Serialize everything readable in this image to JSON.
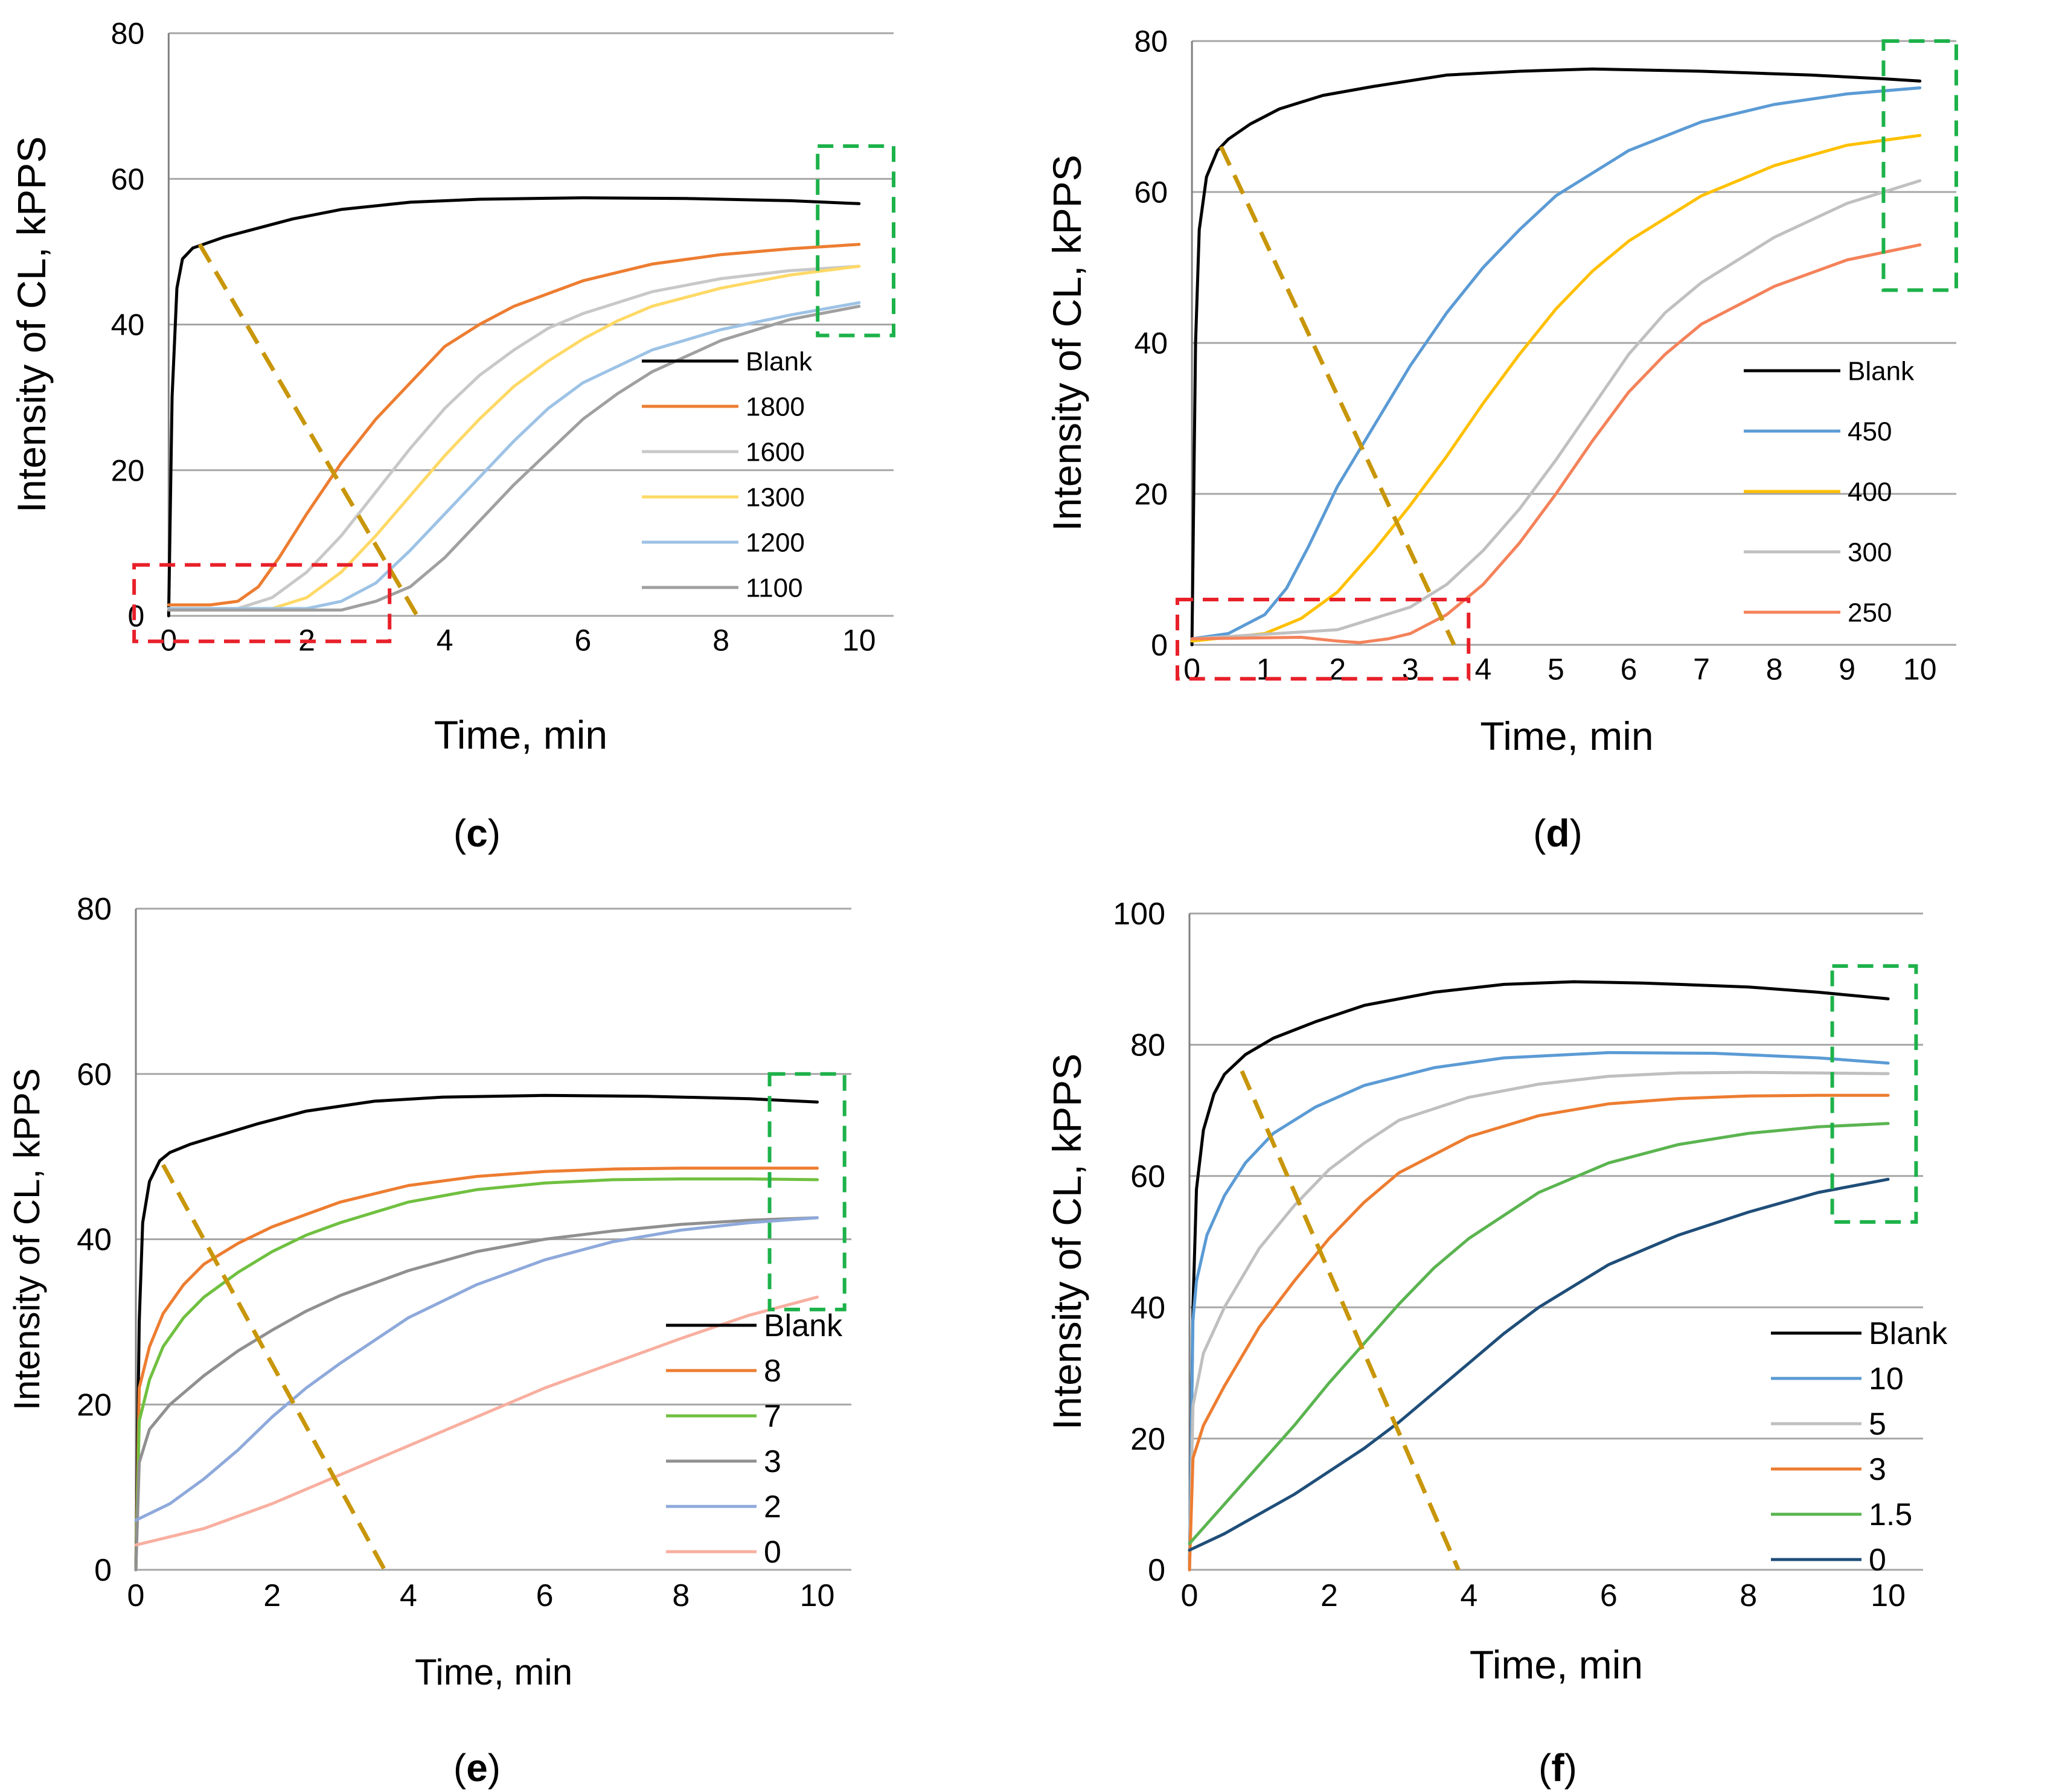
{
  "figure": {
    "panels": [
      "c",
      "d",
      "e",
      "f"
    ]
  },
  "chart_data": [
    {
      "id": "c",
      "caption": "(c)",
      "type": "line",
      "xlabel": "Time, min",
      "ylabel": "Intensity of CL, kPPS",
      "xlim": [
        -0.3,
        10.5
      ],
      "ylim": [
        0,
        80
      ],
      "xticks": [
        0,
        2,
        4,
        6,
        8,
        10
      ],
      "yticks": [
        0,
        20,
        40,
        60,
        80
      ],
      "grid": true,
      "legend": "right",
      "series": [
        {
          "name": "Blank",
          "color": "#000000",
          "x": [
            0,
            0.05,
            0.12,
            0.2,
            0.35,
            0.5,
            0.8,
            1.2,
            1.8,
            2.5,
            3.5,
            4.5,
            6,
            7.5,
            9,
            10
          ],
          "y": [
            0,
            30,
            45,
            49,
            50.5,
            51,
            52,
            53,
            54.5,
            55.8,
            56.8,
            57.2,
            57.4,
            57.3,
            57,
            56.6
          ]
        },
        {
          "name": "1800",
          "color": "#ED7D31",
          "x": [
            0,
            0.6,
            1,
            1.3,
            1.6,
            2,
            2.5,
            3,
            3.5,
            4,
            4.5,
            5,
            6,
            7,
            8,
            9,
            10
          ],
          "y": [
            1.5,
            1.5,
            2,
            4,
            8,
            14,
            21,
            27,
            32,
            37,
            40,
            42.5,
            46,
            48.3,
            49.6,
            50.4,
            51
          ]
        },
        {
          "name": "1600",
          "color": "#C8C8C8",
          "x": [
            0,
            1,
            1.5,
            2,
            2.5,
            3,
            3.5,
            4,
            4.5,
            5,
            5.5,
            6,
            7,
            8,
            9,
            10
          ],
          "y": [
            1,
            1,
            2.5,
            6,
            11,
            17,
            23,
            28.5,
            33,
            36.5,
            39.5,
            41.5,
            44.5,
            46.3,
            47.4,
            48
          ]
        },
        {
          "name": "1300",
          "color": "#FFD966",
          "x": [
            0,
            1.5,
            2,
            2.5,
            3,
            3.5,
            4,
            4.5,
            5,
            5.5,
            6,
            6.5,
            7,
            8,
            9,
            10
          ],
          "y": [
            1,
            1,
            2.5,
            6,
            11,
            16.5,
            22,
            27,
            31.5,
            35,
            38,
            40.5,
            42.5,
            45,
            46.8,
            48
          ]
        },
        {
          "name": "1200",
          "color": "#9DC3E6",
          "x": [
            0,
            2,
            2.5,
            3,
            3.5,
            4,
            4.5,
            5,
            5.5,
            6,
            7,
            8,
            9,
            10
          ],
          "y": [
            1,
            1,
            2,
            4.5,
            9,
            14,
            19,
            24,
            28.5,
            32,
            36.5,
            39.3,
            41.3,
            43
          ]
        },
        {
          "name": "1100",
          "color": "#A0A0A0",
          "x": [
            0,
            2.5,
            3,
            3.5,
            4,
            4.5,
            5,
            5.5,
            6,
            6.5,
            7,
            8,
            9,
            10
          ],
          "y": [
            0.8,
            0.8,
            2,
            4,
            8,
            13,
            18,
            22.5,
            27,
            30.5,
            33.5,
            37.8,
            40.7,
            42.5
          ]
        }
      ],
      "annotations": {
        "dashed_diagonal": [
          [
            0.45,
            51
          ],
          [
            3.6,
            0
          ]
        ],
        "red_box": [
          [
            -0.5,
            -3.5
          ],
          [
            3.2,
            7
          ]
        ],
        "green_box": [
          [
            9.4,
            38.5
          ],
          [
            10.5,
            64.5
          ]
        ]
      }
    },
    {
      "id": "d",
      "caption": "(d)",
      "type": "line",
      "xlabel": "Time, min",
      "ylabel": "Intensity of CL, kPPS",
      "xlim": [
        -0.2,
        10.5
      ],
      "ylim": [
        0,
        80
      ],
      "xticks": [
        0,
        1,
        2,
        3,
        4,
        5,
        6,
        7,
        8,
        9,
        10
      ],
      "yticks": [
        0,
        20,
        40,
        60,
        80
      ],
      "grid": true,
      "legend": "right",
      "series": [
        {
          "name": "Blank",
          "color": "#000000",
          "x": [
            0,
            0.05,
            0.1,
            0.2,
            0.35,
            0.5,
            0.8,
            1.2,
            1.8,
            2.5,
            3.5,
            4.5,
            5.5,
            7,
            8.5,
            9.5,
            10
          ],
          "y": [
            0,
            40,
            55,
            62,
            65.5,
            67,
            69,
            71,
            72.8,
            74,
            75.5,
            76,
            76.3,
            76,
            75.5,
            75,
            74.7
          ]
        },
        {
          "name": "450",
          "color": "#5B9BD5",
          "x": [
            0,
            0.5,
            1,
            1.3,
            1.6,
            2,
            2.5,
            3,
            3.5,
            4,
            4.5,
            5,
            6,
            7,
            8,
            9,
            10
          ],
          "y": [
            0.8,
            1.5,
            4,
            7.5,
            13,
            21,
            29,
            37,
            44,
            50,
            55,
            59.5,
            65.5,
            69.3,
            71.6,
            73,
            73.8
          ]
        },
        {
          "name": "400",
          "color": "#FFC000",
          "x": [
            0,
            1,
            1.5,
            2,
            2.5,
            3,
            3.5,
            4,
            4.5,
            5,
            5.5,
            6,
            7,
            8,
            9,
            10
          ],
          "y": [
            0.5,
            1.5,
            3.5,
            7,
            12.5,
            18.5,
            25,
            32,
            38.5,
            44.5,
            49.5,
            53.5,
            59.5,
            63.5,
            66.2,
            67.5
          ]
        },
        {
          "name": "300",
          "color": "#C0C0C0",
          "x": [
            0,
            2,
            2.5,
            3,
            3.5,
            4,
            4.5,
            5,
            5.5,
            6,
            6.5,
            7,
            8,
            9,
            10
          ],
          "y": [
            0.8,
            2,
            3.5,
            5,
            8,
            12.5,
            18,
            24.5,
            31.5,
            38.5,
            44,
            48,
            54,
            58.5,
            61.5
          ]
        },
        {
          "name": "250",
          "color": "#F4825A",
          "x": [
            0,
            1.5,
            2,
            2.3,
            2.7,
            3,
            3.5,
            4,
            4.5,
            5,
            5.5,
            6,
            6.5,
            7,
            8,
            9,
            10
          ],
          "y": [
            0.8,
            1,
            0.5,
            0.3,
            0.8,
            1.5,
            4,
            8,
            13.5,
            20,
            27,
            33.5,
            38.5,
            42.5,
            47.5,
            51,
            53
          ]
        }
      ],
      "annotations": {
        "dashed_diagonal": [
          [
            0.4,
            66
          ],
          [
            3.6,
            0
          ]
        ],
        "red_box": [
          [
            -0.2,
            -4.5
          ],
          [
            3.8,
            6
          ]
        ],
        "green_box": [
          [
            9.5,
            47
          ],
          [
            10.5,
            80
          ]
        ]
      }
    },
    {
      "id": "e",
      "caption": "(e)",
      "type": "line",
      "xlabel": "Time, min",
      "ylabel": "Intensity of CL, kPPS",
      "xlim": [
        0,
        10.5
      ],
      "ylim": [
        0,
        80
      ],
      "xticks": [
        0,
        2,
        4,
        6,
        8,
        10
      ],
      "yticks": [
        0,
        20,
        40,
        60,
        80
      ],
      "grid": true,
      "legend": "right",
      "series": [
        {
          "name": "Blank",
          "color": "#000000",
          "x": [
            0,
            0.05,
            0.1,
            0.2,
            0.35,
            0.5,
            0.8,
            1.2,
            1.8,
            2.5,
            3.5,
            4.5,
            6,
            7.5,
            9,
            10
          ],
          "y": [
            0,
            30,
            42,
            47,
            49.5,
            50.5,
            51.5,
            52.5,
            54,
            55.5,
            56.7,
            57.2,
            57.4,
            57.3,
            57,
            56.6
          ]
        },
        {
          "name": "8",
          "color": "#ED7D31",
          "x": [
            0,
            0.05,
            0.2,
            0.4,
            0.7,
            1,
            1.5,
            2,
            2.5,
            3,
            4,
            5,
            6,
            7,
            8,
            9,
            10
          ],
          "y": [
            0,
            22,
            27,
            31,
            34.5,
            37,
            39.5,
            41.5,
            43,
            44.5,
            46.5,
            47.6,
            48.2,
            48.5,
            48.6,
            48.6,
            48.6
          ]
        },
        {
          "name": "7",
          "color": "#70C040",
          "x": [
            0,
            0.05,
            0.2,
            0.4,
            0.7,
            1,
            1.5,
            2,
            2.5,
            3,
            4,
            5,
            6,
            7,
            8,
            9,
            10
          ],
          "y": [
            0,
            18,
            23,
            27,
            30.5,
            33,
            36,
            38.5,
            40.5,
            42,
            44.5,
            46,
            46.8,
            47.2,
            47.3,
            47.3,
            47.2
          ]
        },
        {
          "name": "3",
          "color": "#909090",
          "x": [
            0,
            0.05,
            0.2,
            0.5,
            1,
            1.5,
            2,
            2.5,
            3,
            4,
            5,
            6,
            7,
            8,
            9,
            10
          ],
          "y": [
            0,
            13,
            17,
            20,
            23.5,
            26.5,
            29,
            31.3,
            33.2,
            36.2,
            38.5,
            40,
            41,
            41.8,
            42.3,
            42.6
          ]
        },
        {
          "name": "2",
          "color": "#8EA9DB",
          "x": [
            0,
            0.5,
            1,
            1.5,
            2,
            2.5,
            3,
            4,
            5,
            6,
            7,
            8,
            9,
            10
          ],
          "y": [
            6,
            8,
            11,
            14.5,
            18.5,
            22,
            25,
            30.5,
            34.5,
            37.5,
            39.7,
            41.1,
            42,
            42.6
          ]
        },
        {
          "name": "0",
          "color": "#F8AFA0",
          "x": [
            0,
            0.5,
            1,
            2,
            3,
            4,
            5,
            6,
            7,
            8,
            9,
            10
          ],
          "y": [
            3,
            4,
            5,
            8,
            11.5,
            15,
            18.5,
            22,
            25,
            28,
            30.8,
            33
          ]
        }
      ],
      "annotations": {
        "dashed_diagonal": [
          [
            0.4,
            49
          ],
          [
            3.65,
            0
          ]
        ],
        "green_box": [
          [
            9.3,
            31.5
          ],
          [
            10.4,
            60
          ]
        ]
      }
    },
    {
      "id": "f",
      "caption": "(f)",
      "type": "line",
      "xlabel": "Time, min",
      "ylabel": "Intensity of CL, kPPS",
      "xlim": [
        0,
        10.5
      ],
      "ylim": [
        0,
        100
      ],
      "xticks": [
        0,
        2,
        4,
        6,
        8,
        10
      ],
      "yticks": [
        0,
        20,
        40,
        60,
        80,
        100
      ],
      "grid": true,
      "legend": "right",
      "series": [
        {
          "name": "Blank",
          "color": "#000000",
          "x": [
            0,
            0.05,
            0.1,
            0.2,
            0.35,
            0.5,
            0.8,
            1.2,
            1.8,
            2.5,
            3.5,
            4.5,
            5.5,
            6.5,
            8,
            9,
            10
          ],
          "y": [
            0,
            40,
            58,
            67,
            72.5,
            75.5,
            78.5,
            81,
            83.5,
            86,
            88,
            89.2,
            89.6,
            89.4,
            88.8,
            88,
            87
          ]
        },
        {
          "name": "10",
          "color": "#5B9BD5",
          "x": [
            0,
            0.05,
            0.1,
            0.25,
            0.5,
            0.8,
            1.2,
            1.8,
            2.5,
            3.5,
            4.5,
            6,
            7.5,
            9,
            10
          ],
          "y": [
            0,
            38,
            44,
            51,
            57,
            62,
            66.5,
            70.5,
            73.8,
            76.5,
            78,
            78.8,
            78.7,
            78,
            77.2
          ]
        },
        {
          "name": "5",
          "color": "#BFBFBF",
          "x": [
            0,
            0.05,
            0.2,
            0.5,
            1,
            1.5,
            2,
            2.5,
            3,
            4,
            5,
            6,
            7,
            8,
            9,
            10
          ],
          "y": [
            0,
            25,
            33,
            40,
            49,
            55.5,
            61,
            65,
            68.5,
            72,
            74,
            75.2,
            75.7,
            75.8,
            75.7,
            75.6
          ]
        },
        {
          "name": "3",
          "color": "#ED7D31",
          "x": [
            0,
            0.05,
            0.2,
            0.5,
            1,
            1.5,
            2,
            2.5,
            3,
            4,
            5,
            6,
            7,
            8,
            9,
            10
          ],
          "y": [
            0,
            17,
            22,
            28,
            37,
            44,
            50.5,
            56,
            60.5,
            66,
            69.2,
            71,
            71.8,
            72.2,
            72.3,
            72.3
          ]
        },
        {
          "name": "1.5",
          "color": "#5BB450",
          "x": [
            0,
            0.5,
            1,
            1.5,
            2,
            2.5,
            3,
            3.5,
            4,
            5,
            6,
            7,
            8,
            9,
            10
          ],
          "y": [
            4,
            10,
            16,
            22,
            28.5,
            34.5,
            40.5,
            46,
            50.5,
            57.5,
            62,
            64.8,
            66.5,
            67.5,
            68
          ]
        },
        {
          "name": "0",
          "color": "#1F4E79",
          "x": [
            0,
            0.5,
            1,
            1.5,
            2,
            2.5,
            3,
            3.5,
            4,
            4.5,
            5,
            6,
            7,
            8,
            9,
            10
          ],
          "y": [
            3,
            5.5,
            8.5,
            11.5,
            15,
            18.5,
            22.5,
            27,
            31.5,
            36,
            40,
            46.5,
            51,
            54.5,
            57.5,
            59.5
          ]
        }
      ],
      "annotations": {
        "dashed_diagonal": [
          [
            0.75,
            76
          ],
          [
            3.85,
            0
          ]
        ],
        "green_box": [
          [
            9.2,
            53
          ],
          [
            10.4,
            92
          ]
        ]
      }
    }
  ]
}
